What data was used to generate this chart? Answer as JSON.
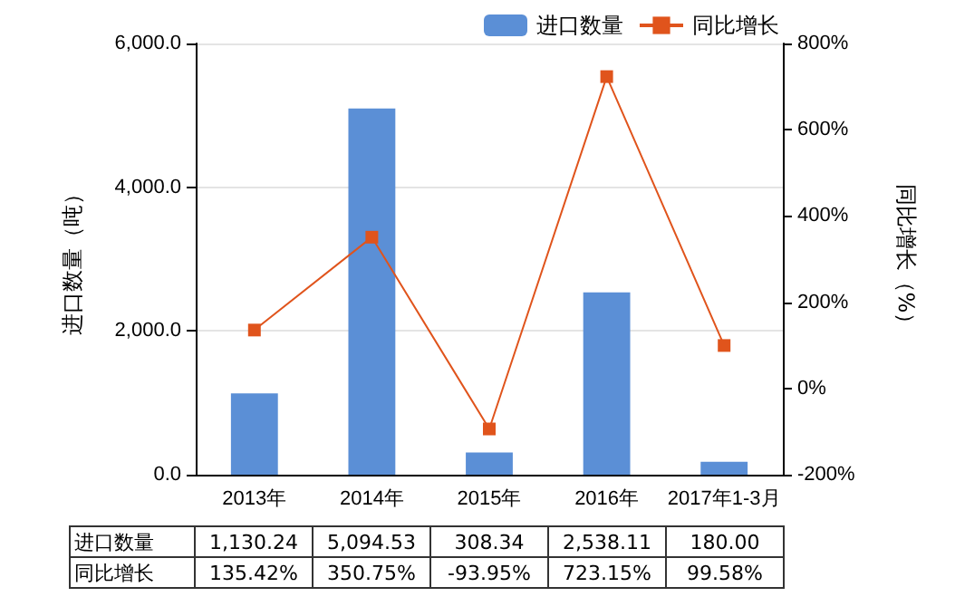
{
  "chart_data": {
    "type": "bar",
    "categories": [
      "2013年",
      "2014年",
      "2015年",
      "2016年",
      "2017年1-3月"
    ],
    "ylabel": "进口数量（吨）",
    "y2label": "同比增长（%）",
    "series": [
      {
        "name": "进口数量",
        "color": "#5b8fd6",
        "values": [
          1130.24,
          5094.53,
          308.34,
          2538.11,
          180.0
        ],
        "value_labels": [
          "1,130.24",
          "5,094.53",
          "308.34",
          "2,538.11",
          "180.00"
        ]
      },
      {
        "name": "同比增长",
        "type": "line",
        "axis": "y2",
        "color": "#e0541c",
        "marker": "square",
        "values": [
          135.42,
          350.75,
          -93.95,
          723.15,
          99.58
        ],
        "value_labels": [
          "135.42%",
          "350.75%",
          "-93.95%",
          "723.15%",
          "99.58%"
        ]
      }
    ],
    "ylim": [
      0,
      6000
    ],
    "yticks": [
      {
        "value": 0,
        "label": "0.0"
      },
      {
        "value": 2000,
        "label": "2,000.0"
      },
      {
        "value": 4000,
        "label": "4,000.0"
      },
      {
        "value": 6000,
        "label": "6,000.0"
      }
    ],
    "y2lim": [
      -200,
      800
    ],
    "y2ticks": [
      {
        "value": -200,
        "label": "-200%"
      },
      {
        "value": 0,
        "label": "0%"
      },
      {
        "value": 200,
        "label": "200%"
      },
      {
        "value": 400,
        "label": "400%"
      },
      {
        "value": 600,
        "label": "600%"
      },
      {
        "value": 800,
        "label": "800%"
      }
    ],
    "grid": "y",
    "legend": "top right"
  }
}
